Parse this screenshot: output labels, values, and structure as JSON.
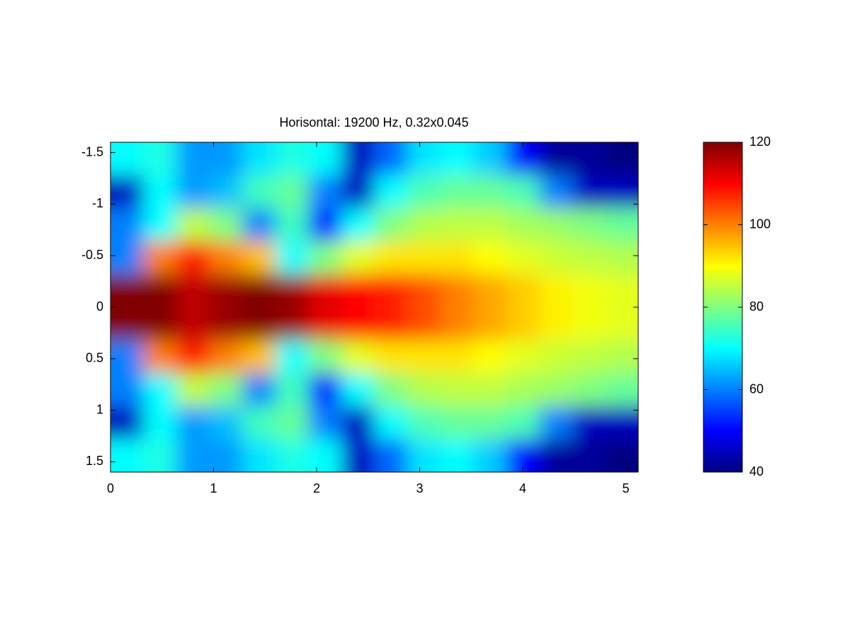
{
  "chart_data": {
    "type": "heatmap",
    "title": "Horisontal: 19200 Hz, 0.32x0.045",
    "colormap": "jet",
    "x": [
      0.16,
      0.48,
      0.8,
      1.12,
      1.44,
      1.76,
      2.08,
      2.4,
      2.72,
      3.04,
      3.36,
      3.68,
      4.0,
      4.32,
      4.64,
      4.96
    ],
    "y": [
      -1.44,
      -1.12,
      -0.8,
      -0.48,
      -0.16,
      0.16,
      0.48,
      0.8,
      1.12,
      1.44
    ],
    "z": [
      [
        70,
        72,
        62,
        62,
        68,
        72,
        70,
        45,
        58,
        68,
        70,
        66,
        50,
        42,
        42,
        40
      ],
      [
        45,
        70,
        62,
        65,
        75,
        78,
        60,
        45,
        70,
        76,
        78,
        78,
        76,
        60,
        45,
        45
      ],
      [
        60,
        70,
        85,
        80,
        60,
        75,
        50,
        70,
        80,
        84,
        85,
        85,
        83,
        82,
        80,
        78
      ],
      [
        60,
        100,
        108,
        100,
        95,
        70,
        80,
        88,
        92,
        92,
        92,
        90,
        88,
        86,
        85,
        84
      ],
      [
        120,
        120,
        115,
        118,
        120,
        118,
        112,
        110,
        108,
        104,
        100,
        97,
        94,
        91,
        89,
        88
      ],
      [
        120,
        120,
        115,
        118,
        120,
        118,
        112,
        110,
        108,
        104,
        100,
        97,
        94,
        91,
        89,
        88
      ],
      [
        60,
        100,
        108,
        100,
        95,
        70,
        80,
        88,
        92,
        92,
        92,
        90,
        88,
        86,
        85,
        84
      ],
      [
        60,
        70,
        85,
        80,
        60,
        75,
        50,
        70,
        80,
        84,
        85,
        85,
        83,
        82,
        80,
        78
      ],
      [
        45,
        70,
        62,
        65,
        75,
        78,
        60,
        45,
        70,
        76,
        78,
        78,
        76,
        60,
        45,
        45
      ],
      [
        70,
        72,
        62,
        62,
        68,
        72,
        70,
        45,
        58,
        68,
        70,
        66,
        50,
        42,
        42,
        40
      ]
    ],
    "xlim": [
      0,
      5.12
    ],
    "xticks": [
      0,
      1,
      2,
      3,
      4,
      5
    ],
    "ylim": [
      1.6,
      -1.6
    ],
    "yticks": [
      -1.5,
      -1,
      -0.5,
      0,
      0.5,
      1,
      1.5
    ],
    "clim": [
      40,
      120
    ],
    "cticks": [
      40,
      60,
      80,
      100,
      120
    ]
  }
}
